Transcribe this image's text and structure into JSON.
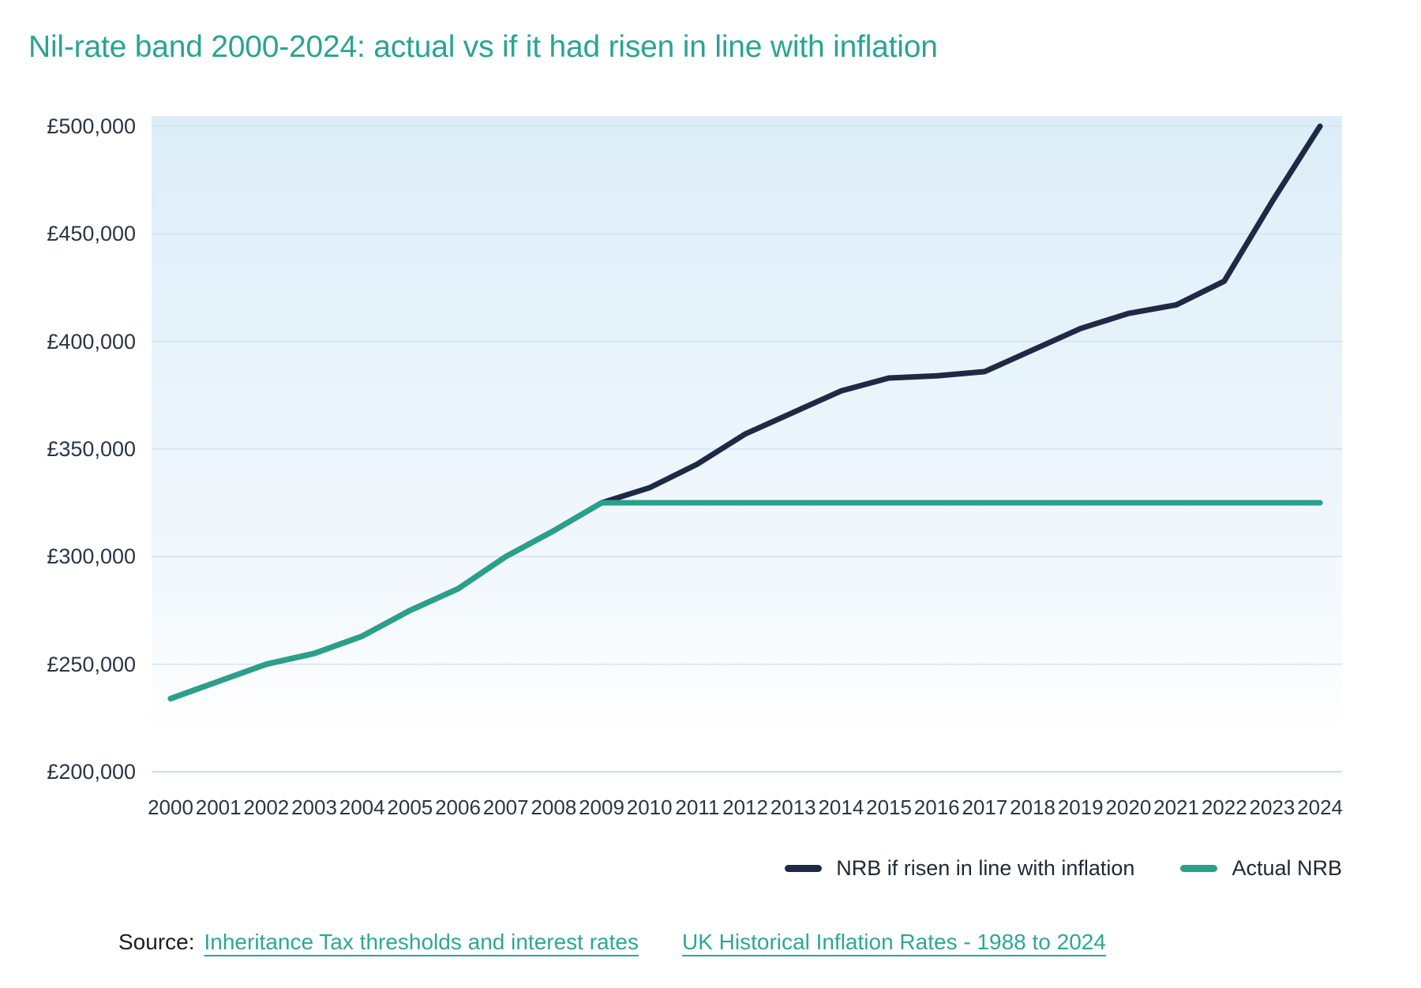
{
  "title": "Nil-rate band 2000-2024: actual vs if it had risen in line with inflation",
  "colors": {
    "title_teal": "#2aa491",
    "link_teal": "#2ca795",
    "actual_line": "#2aa08a",
    "inflation_line": "#1e2a44",
    "axis_label": "#2b3544",
    "gridline": "#cfe3f0",
    "baseline": "#c7deee",
    "plot_bg_top": "#dcedf8",
    "plot_bg_bottom": "#ffffff"
  },
  "chart_data": {
    "type": "line",
    "x": [
      2000,
      2001,
      2002,
      2003,
      2004,
      2005,
      2006,
      2007,
      2008,
      2009,
      2010,
      2011,
      2012,
      2013,
      2014,
      2015,
      2016,
      2017,
      2018,
      2019,
      2020,
      2021,
      2022,
      2023,
      2024
    ],
    "series": [
      {
        "name": "NRB if risen in line with inflation",
        "color": "#1e2a44",
        "values": [
          234000,
          242000,
          250000,
          255000,
          263000,
          275000,
          285000,
          300000,
          312000,
          325000,
          332000,
          343000,
          357000,
          367000,
          377000,
          383000,
          384000,
          386000,
          396000,
          406000,
          413000,
          417000,
          428000,
          465000,
          500000
        ]
      },
      {
        "name": "Actual NRB",
        "color": "#2aa08a",
        "values": [
          234000,
          242000,
          250000,
          255000,
          263000,
          275000,
          285000,
          300000,
          312000,
          325000,
          325000,
          325000,
          325000,
          325000,
          325000,
          325000,
          325000,
          325000,
          325000,
          325000,
          325000,
          325000,
          325000,
          325000,
          325000
        ]
      }
    ],
    "y_ticks": [
      {
        "v": 500000,
        "label": "£500,000"
      },
      {
        "v": 450000,
        "label": "£450,000"
      },
      {
        "v": 400000,
        "label": "£400,000"
      },
      {
        "v": 350000,
        "label": "£350,000"
      },
      {
        "v": 300000,
        "label": "£300,000"
      },
      {
        "v": 250000,
        "label": "£250,000"
      },
      {
        "v": 200000,
        "label": "£200,000"
      }
    ],
    "ylim": [
      200000,
      500000
    ],
    "grid": true,
    "legend_position": "bottom-right"
  },
  "legend": {
    "items": [
      {
        "label": "NRB if risen in line with inflation"
      },
      {
        "label": "Actual NRB"
      }
    ]
  },
  "source": {
    "label": "Source:",
    "links": [
      {
        "text": "Inheritance Tax thresholds and interest rates"
      },
      {
        "text": "UK Historical Inflation Rates - 1988 to 2024"
      }
    ]
  }
}
